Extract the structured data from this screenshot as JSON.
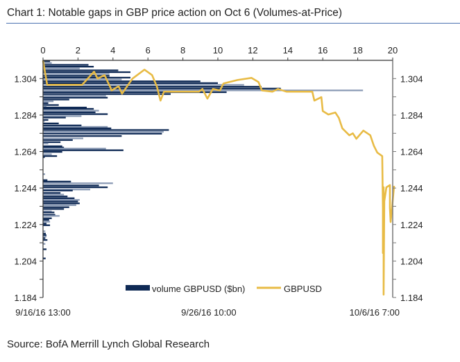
{
  "title": "Chart 1: Notable gaps in GBP price action on Oct 6 (Volumes-at-Price)",
  "source": "Source: BofA Merrill Lynch Global Research",
  "colors": {
    "volume": "#0f2a55",
    "volume_alt": "#8b9bb5",
    "price": "#e8bb45",
    "rule": "#4a72b0"
  },
  "chart_data": {
    "type": "bar+line",
    "title": "Chart 1: Notable gaps in GBP price action on Oct 6 (Volumes-at-Price)",
    "volume_axis": {
      "label": "volume GBPUSD ($bn)",
      "range": [
        0,
        20
      ],
      "ticks": [
        "0",
        "2",
        "4",
        "6",
        "8",
        "10",
        "12",
        "14",
        "16",
        "18",
        "20"
      ],
      "placement": "top"
    },
    "price_axis": {
      "range": [
        1.184,
        1.314
      ],
      "ticks": [
        "1.304",
        "1.284",
        "1.264",
        "1.244",
        "1.224",
        "1.204",
        "1.184"
      ]
    },
    "time_axis": {
      "range_hours": [
        0,
        500
      ],
      "ticks": [
        {
          "label": "9/16/16 13:00",
          "hours": 0
        },
        {
          "label": "9/26/16 10:00",
          "hours": 237
        },
        {
          "label": "10/6/16 7:00",
          "hours": 474
        }
      ]
    },
    "legend": [
      {
        "name": "volume GBPUSD ($bn)",
        "kind": "bar"
      },
      {
        "name": "GBPUSD",
        "kind": "line"
      }
    ],
    "legend_placement": "bottom-center",
    "volume_at_price": [
      [
        1.3135,
        0.4
      ],
      [
        1.3125,
        0.5
      ],
      [
        1.3115,
        2.6
      ],
      [
        1.3105,
        2.9
      ],
      [
        1.3095,
        2.1
      ],
      [
        1.3085,
        4.3
      ],
      [
        1.3075,
        5.0
      ],
      [
        1.3065,
        3.8
      ],
      [
        1.3055,
        3.8
      ],
      [
        1.3045,
        5.0
      ],
      [
        1.3035,
        4.5
      ],
      [
        1.3025,
        9.0
      ],
      [
        1.3015,
        10.0
      ],
      [
        1.3005,
        11.5
      ],
      [
        1.2995,
        12.5
      ],
      [
        1.2985,
        13.6
      ],
      [
        1.2975,
        18.3
      ],
      [
        1.2965,
        10.5
      ],
      [
        1.2955,
        7.3
      ],
      [
        1.2945,
        3.6
      ],
      [
        1.2935,
        3.7
      ],
      [
        1.2925,
        1.5
      ],
      [
        1.2915,
        0.6
      ],
      [
        1.2905,
        0.3
      ],
      [
        1.2895,
        0.9
      ],
      [
        1.2888,
        0.2
      ],
      [
        1.2881,
        2.5
      ],
      [
        1.2874,
        2.9
      ],
      [
        1.2864,
        3.2
      ],
      [
        1.2855,
        3.0
      ],
      [
        1.2845,
        3.7
      ],
      [
        1.2834,
        2.2
      ],
      [
        1.2826,
        1.3
      ],
      [
        1.2813,
        0.3
      ],
      [
        1.2805,
        0.1
      ],
      [
        1.2794,
        0.9
      ],
      [
        1.2783,
        2.2
      ],
      [
        1.2775,
        3.7
      ],
      [
        1.2767,
        3.9
      ],
      [
        1.2758,
        7.2
      ],
      [
        1.2748,
        6.9
      ],
      [
        1.2738,
        6.8
      ],
      [
        1.2725,
        4.5
      ],
      [
        1.2712,
        2.3
      ],
      [
        1.2703,
        1.7
      ],
      [
        1.2691,
        1.0
      ],
      [
        1.2684,
        0.3
      ],
      [
        1.2669,
        1.1
      ],
      [
        1.2662,
        1.2
      ],
      [
        1.2656,
        3.6
      ],
      [
        1.2647,
        4.6
      ],
      [
        1.2638,
        1.1
      ],
      [
        1.2625,
        0.5
      ],
      [
        1.2615,
        0.8
      ],
      [
        1.2609,
        0.1
      ],
      [
        1.2516,
        0.12
      ],
      [
        1.2483,
        0.25
      ],
      [
        1.2475,
        1.6
      ],
      [
        1.2466,
        4.0
      ],
      [
        1.2454,
        3.2
      ],
      [
        1.2444,
        3.7
      ],
      [
        1.2432,
        2.7
      ],
      [
        1.2426,
        1.7
      ],
      [
        1.2413,
        1.0
      ],
      [
        1.2404,
        1.2
      ],
      [
        1.2394,
        1.4
      ],
      [
        1.2384,
        1.8
      ],
      [
        1.2375,
        2.1
      ],
      [
        1.2366,
        2.0
      ],
      [
        1.2356,
        2.1
      ],
      [
        1.2346,
        1.9
      ],
      [
        1.2335,
        1.5
      ],
      [
        1.2325,
        1.2
      ],
      [
        1.2312,
        0.5
      ],
      [
        1.2306,
        0.65
      ],
      [
        1.2293,
        0.7
      ],
      [
        1.2287,
        0.95
      ],
      [
        1.2274,
        0.5
      ],
      [
        1.2265,
        0.35
      ],
      [
        1.2255,
        0.4
      ],
      [
        1.2245,
        0.2
      ],
      [
        1.2236,
        0.4
      ],
      [
        1.2203,
        0.13
      ],
      [
        1.219,
        0.16
      ],
      [
        1.2181,
        0.2
      ],
      [
        1.2174,
        0.2
      ],
      [
        1.2165,
        0.13
      ],
      [
        1.2155,
        0.25
      ],
      [
        1.2134,
        0.13
      ],
      [
        1.2104,
        0.2
      ],
      [
        1.2054,
        0.15
      ]
    ],
    "price_series": [
      [
        0,
        1.3139
      ],
      [
        6,
        1.3006
      ],
      [
        56,
        1.3006
      ],
      [
        73,
        1.3078
      ],
      [
        78,
        1.304
      ],
      [
        88,
        1.3059
      ],
      [
        96,
        1.2994
      ],
      [
        98,
        1.2975
      ],
      [
        108,
        1.2998
      ],
      [
        113,
        1.2957
      ],
      [
        121,
        1.3002
      ],
      [
        128,
        1.304
      ],
      [
        145,
        1.3089
      ],
      [
        156,
        1.3059
      ],
      [
        163,
        1.2994
      ],
      [
        168,
        1.2919
      ],
      [
        173,
        1.2968
      ],
      [
        223,
        1.2968
      ],
      [
        228,
        1.2983
      ],
      [
        235,
        1.293
      ],
      [
        243,
        1.2983
      ],
      [
        253,
        1.2975
      ],
      [
        258,
        1.3013
      ],
      [
        278,
        1.3032
      ],
      [
        298,
        1.3044
      ],
      [
        308,
        1.3021
      ],
      [
        313,
        1.2975
      ],
      [
        328,
        1.2968
      ],
      [
        336,
        1.2983
      ],
      [
        348,
        1.2968
      ],
      [
        385,
        1.2968
      ],
      [
        388,
        1.2919
      ],
      [
        398,
        1.2938
      ],
      [
        400,
        1.2862
      ],
      [
        408,
        1.2843
      ],
      [
        418,
        1.2854
      ],
      [
        423,
        1.2824
      ],
      [
        428,
        1.2767
      ],
      [
        438,
        1.2729
      ],
      [
        443,
        1.274
      ],
      [
        448,
        1.271
      ],
      [
        458,
        1.2755
      ],
      [
        468,
        1.2729
      ],
      [
        473,
        1.2672
      ],
      [
        478,
        1.2634
      ],
      [
        485,
        1.2615
      ],
      [
        486,
        1.233
      ],
      [
        486,
        1.2084
      ],
      [
        487,
        1.2444
      ],
      [
        487,
        1.1856
      ],
      [
        488,
        1.2368
      ],
      [
        491,
        1.2444
      ],
      [
        496,
        1.2456
      ],
      [
        496,
        1.233
      ],
      [
        497,
        1.2254
      ],
      [
        499,
        1.233
      ],
      [
        502,
        1.2452
      ]
    ]
  }
}
